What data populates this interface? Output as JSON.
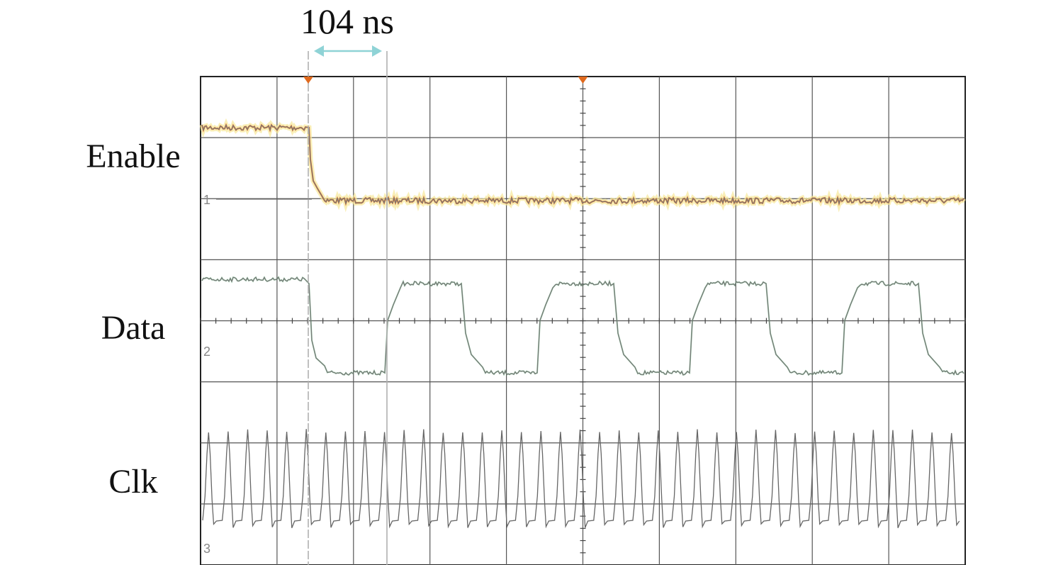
{
  "chart_data": {
    "type": "line",
    "annotation": {
      "text": "104 ns",
      "arrow_color": "#8fd3d6",
      "cursor_color": "#b0b0b0"
    },
    "grid": {
      "divisions_x": 10,
      "divisions_y": 8,
      "on": true
    },
    "trigger_marker_color": "#e06a1e",
    "series": [
      {
        "name": "Enable",
        "channel": "1",
        "trace_color": "#777777",
        "highlight_color": "#e06a1e",
        "glow_color": "#f7e89a"
      },
      {
        "name": "Data",
        "channel": "2",
        "trace_color": "#777777",
        "highlight_color": "#2fae55"
      },
      {
        "name": "Clk",
        "channel": "3",
        "trace_color": "#666666",
        "clock_cycles": 39
      }
    ]
  }
}
